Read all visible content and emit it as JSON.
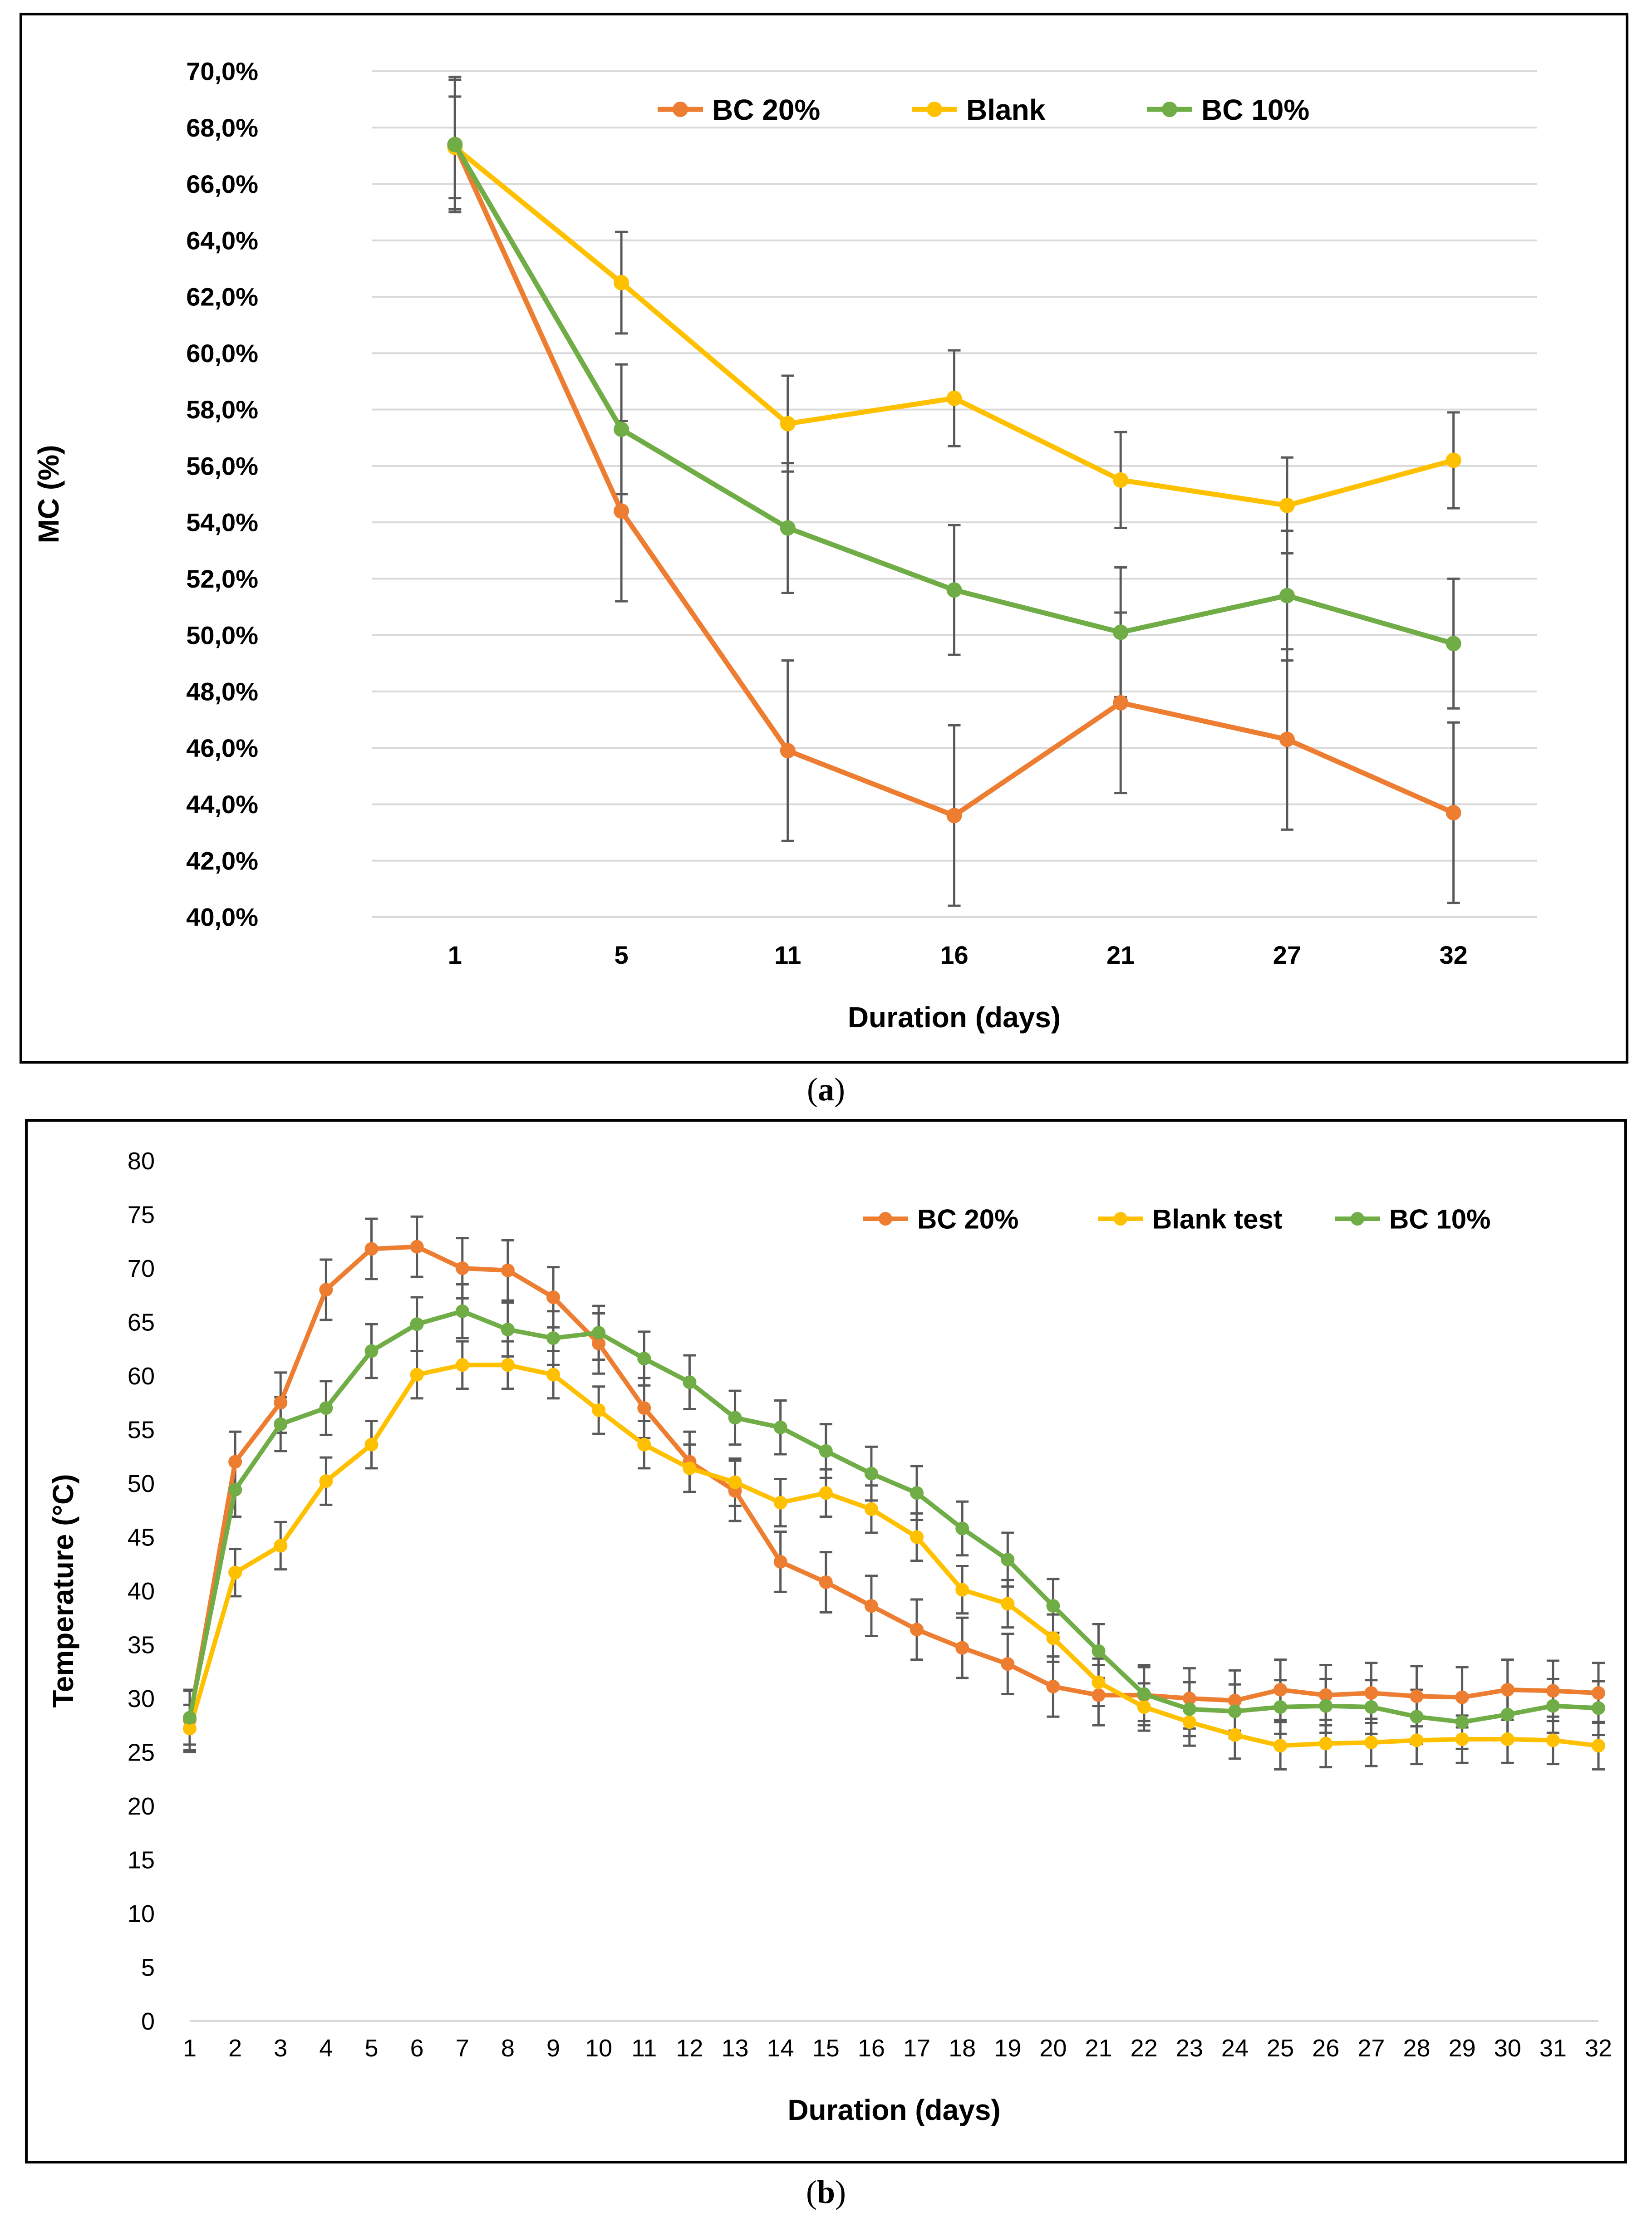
{
  "colors": {
    "bc20": "#ED7D31",
    "blank": "#FFC000",
    "bc10": "#70AD47",
    "grid": "#D9D9D9",
    "errorbar": "#595959"
  },
  "captions": {
    "a": "a",
    "b": "b"
  },
  "chart_data": [
    {
      "id": "a",
      "type": "line",
      "title": "",
      "xlabel": "Duration (days)",
      "ylabel": "MC (%)",
      "categories": [
        "1",
        "5",
        "11",
        "16",
        "21",
        "27",
        "32"
      ],
      "ylim": [
        40,
        70
      ],
      "ystep": 2,
      "ytick_labels": [
        "40,0%",
        "42,0%",
        "44,0%",
        "46,0%",
        "48,0%",
        "50,0%",
        "52,0%",
        "54,0%",
        "56,0%",
        "58,0%",
        "60,0%",
        "62,0%",
        "64,0%",
        "66,0%",
        "68,0%",
        "70,0%"
      ],
      "grid": true,
      "legend_position": "top-center",
      "series": [
        {
          "key": "bc20",
          "name": "BC 20%",
          "values": [
            67.4,
            54.4,
            45.9,
            43.6,
            47.6,
            46.3,
            43.7
          ],
          "errors": [
            2.4,
            3.2,
            3.2,
            3.2,
            3.2,
            3.2,
            3.2
          ]
        },
        {
          "key": "blank",
          "name": "Blank",
          "values": [
            67.3,
            62.5,
            57.5,
            58.4,
            55.5,
            54.6,
            56.2
          ],
          "errors": [
            1.8,
            1.8,
            1.7,
            1.7,
            1.7,
            1.7,
            1.7
          ]
        },
        {
          "key": "bc10",
          "name": "BC 10%",
          "values": [
            67.4,
            57.3,
            53.8,
            51.6,
            50.1,
            51.4,
            49.7
          ],
          "errors": [
            2.3,
            2.3,
            2.3,
            2.3,
            2.3,
            2.3,
            2.3
          ]
        }
      ]
    },
    {
      "id": "b",
      "type": "line",
      "title": "",
      "xlabel": "Duration (days)",
      "ylabel": "Temperature (°C)",
      "categories": [
        "1",
        "2",
        "3",
        "4",
        "5",
        "6",
        "7",
        "8",
        "9",
        "10",
        "11",
        "12",
        "13",
        "14",
        "15",
        "16",
        "17",
        "18",
        "19",
        "20",
        "21",
        "22",
        "23",
        "24",
        "25",
        "26",
        "27",
        "28",
        "29",
        "30",
        "31",
        "32"
      ],
      "ylim": [
        0,
        80
      ],
      "ystep": 5,
      "ytick_labels": [
        "0",
        "5",
        "10",
        "15",
        "20",
        "25",
        "30",
        "35",
        "40",
        "45",
        "50",
        "55",
        "60",
        "65",
        "70",
        "75",
        "80"
      ],
      "grid": false,
      "legend_position": "top-right",
      "series": [
        {
          "key": "bc20",
          "name": "BC 20%",
          "values": [
            28,
            52,
            57.5,
            68,
            71.8,
            72,
            70,
            69.8,
            67.3,
            63,
            57,
            52,
            49.3,
            42.7,
            40.8,
            38.6,
            36.4,
            34.7,
            33.2,
            31.1,
            30.3,
            30.3,
            30,
            29.8,
            30.8,
            30.3,
            30.5,
            30.2,
            30.1,
            30.8,
            30.7,
            30.5
          ],
          "errors": [
            2.8,
            2.8,
            2.8,
            2.8,
            2.8,
            2.8,
            2.8,
            2.8,
            2.8,
            2.8,
            2.8,
            2.8,
            2.8,
            2.8,
            2.8,
            2.8,
            2.8,
            2.8,
            2.8,
            2.8,
            2.8,
            2.8,
            2.8,
            2.8,
            2.8,
            2.8,
            2.8,
            2.8,
            2.8,
            2.8,
            2.8,
            2.8
          ]
        },
        {
          "key": "blank",
          "name": "Blank test",
          "values": [
            27.2,
            41.7,
            44.2,
            50.2,
            53.6,
            60.1,
            61,
            61,
            60.1,
            56.8,
            53.6,
            51.4,
            50.1,
            48.2,
            49.1,
            47.6,
            45,
            40.1,
            38.8,
            35.6,
            31.5,
            29.2,
            27.8,
            26.6,
            25.6,
            25.8,
            25.9,
            26.1,
            26.2,
            26.2,
            26.1,
            25.6
          ],
          "errors": [
            2.2,
            2.2,
            2.2,
            2.2,
            2.2,
            2.2,
            2.2,
            2.2,
            2.2,
            2.2,
            2.2,
            2.2,
            2.2,
            2.2,
            2.2,
            2.2,
            2.2,
            2.2,
            2.2,
            2.2,
            2.2,
            2.2,
            2.2,
            2.2,
            2.2,
            2.2,
            2.2,
            2.2,
            2.2,
            2.2,
            2.2,
            2.2
          ]
        },
        {
          "key": "bc10",
          "name": "BC 10%",
          "values": [
            28.2,
            49.4,
            55.5,
            57,
            62.3,
            64.8,
            66,
            64.3,
            63.5,
            64,
            61.6,
            59.4,
            56.1,
            55.2,
            53,
            50.9,
            49.1,
            45.8,
            42.9,
            38.6,
            34.4,
            30.4,
            29,
            28.8,
            29.2,
            29.3,
            29.2,
            28.3,
            27.8,
            28.5,
            29.3,
            29.1
          ],
          "errors": [
            2.5,
            2.5,
            2.5,
            2.5,
            2.5,
            2.5,
            2.5,
            2.5,
            2.5,
            2.5,
            2.5,
            2.5,
            2.5,
            2.5,
            2.5,
            2.5,
            2.5,
            2.5,
            2.5,
            2.5,
            2.5,
            2.5,
            2.5,
            2.5,
            2.5,
            2.5,
            2.5,
            2.5,
            2.5,
            2.5,
            2.5,
            2.5
          ]
        }
      ]
    }
  ]
}
